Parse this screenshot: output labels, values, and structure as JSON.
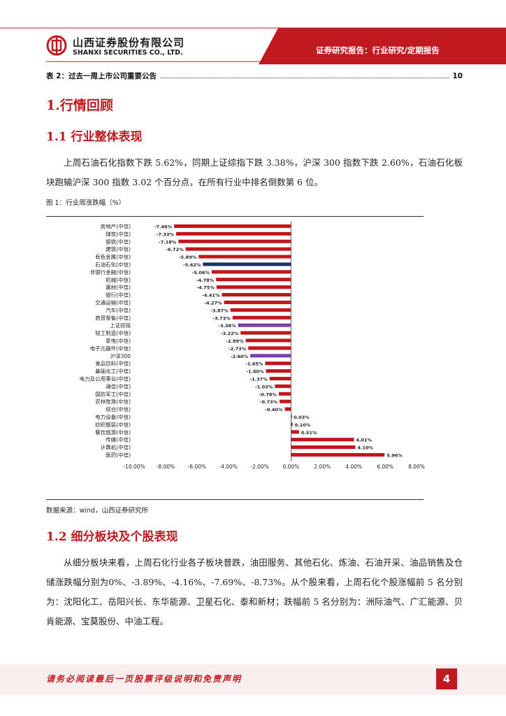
{
  "header": {
    "company_cn": "山西证券股份有限公司",
    "company_en": "SHANXI SECURITIES CO., LTD.",
    "report_type": "证券研究报告：行业研究/定期报告",
    "brand_color": "#c01920"
  },
  "toc_entry": {
    "label": "表 2：过去一周上市公司重要公告",
    "page": "10"
  },
  "section1": {
    "title": "1.行情回顾"
  },
  "section1_1": {
    "title": "1.1 行业整体表现",
    "paragraph": "上周石油石化指数下跌 5.62%，同期上证综指下跌 3.38%，沪深 300 指数下跌 2.60%，石油石化板块跑输沪深 300 指数 3.02 个百分点，在所有行业中排名倒数第 6 位。"
  },
  "figure": {
    "title": "图 1：行业周涨跌幅（%）",
    "source": "数据来源：wind，山西证券研究所"
  },
  "chart_data": {
    "type": "bar",
    "orientation": "horizontal",
    "title": "行业周涨跌幅（%）",
    "categories": [
      "房地产(中信)",
      "煤炭(中信)",
      "钢铁(中信)",
      "建筑(中信)",
      "有色金属(中信)",
      "石油石化(中信)",
      "非银行金融(中信)",
      "机械(中信)",
      "建材(中信)",
      "银行(中信)",
      "交通运输(中信)",
      "汽车(中信)",
      "商贸零售(中信)",
      "上证综指",
      "轻工制造(中信)",
      "家电(中信)",
      "电子元器件(中信)",
      "沪深300",
      "食品饮料(中信)",
      "基础化工(中信)",
      "电力及公用事业(中信)",
      "通信(中信)",
      "国防军工(中信)",
      "农林牧渔(中信)",
      "综合(中信)",
      "电力设备(中信)",
      "纺织服装(中信)",
      "餐饮旅游(中信)",
      "传媒(中信)",
      "计算机(中信)",
      "医药(中信)"
    ],
    "values": [
      -7.46,
      -7.33,
      -7.18,
      -6.72,
      -5.89,
      -5.62,
      -5.06,
      -4.78,
      -4.75,
      -4.41,
      -4.27,
      -3.87,
      -3.73,
      -3.38,
      -3.22,
      -2.89,
      -2.73,
      -2.6,
      -1.65,
      -1.6,
      -1.37,
      -1.03,
      -0.78,
      -0.73,
      -0.4,
      0.03,
      0.1,
      0.51,
      4.01,
      4.1,
      5.96
    ],
    "value_labels": [
      "-7.46%",
      "-7.33%",
      "-7.18%",
      "-6.72%",
      "-5.89%",
      "-5.62%",
      "-5.06%",
      "-4.78%",
      "-4.75%",
      "-4.41%",
      "-4.27%",
      "-3.87%",
      "-3.73%",
      "-3.38%",
      "-3.22%",
      "-2.89%",
      "-2.73%",
      "-2.60%",
      "-1.65%",
      "-1.60%",
      "-1.37%",
      "-1.03%",
      "-0.78%",
      "-0.73%",
      "-0.40%",
      "0.03%",
      "0.10%",
      "0.51%",
      "4.01%",
      "4.10%",
      "5.96%"
    ],
    "bar_colors": {
      "default": "#c0161c",
      "highlight": "#1f2f66",
      "index": "#7b3fa8"
    },
    "highlight_category": "石油石化(中信)",
    "index_categories": [
      "上证综指",
      "沪深300"
    ],
    "xlim": [
      -10,
      8
    ],
    "x_ticks": [
      -10,
      -8,
      -6,
      -4,
      -2,
      0,
      2,
      4,
      6,
      8
    ],
    "x_tick_labels": [
      "-10.00%",
      "-8.00%",
      "-6.00%",
      "-4.00%",
      "-2.00%",
      "0.00%",
      "2.00%",
      "4.00%",
      "6.00%",
      "8.00%"
    ],
    "grid": false,
    "legend": "none"
  },
  "section1_2": {
    "title": "1.2 细分板块及个股表现",
    "paragraph": "从细分板块来看，上周石化行业各子板块普跌，油田服务、其他石化、炼油、石油开采、油品销售及仓储涨跌幅分别为0%、-3.89%、-4.16%、-7.69%、-8.73%。从个股来看，上周石化个股涨幅前 5 名分别为：沈阳化工、岳阳兴长、东华能源、卫星石化、泰和新材；跌幅前 5 名分别为：洲际油气、广汇能源、贝肯能源、宝莫股份、中油工程。"
  },
  "footer": {
    "disclaimer": "请务必阅读最后一页股票评级说明和免责声明",
    "page_number": "4"
  }
}
